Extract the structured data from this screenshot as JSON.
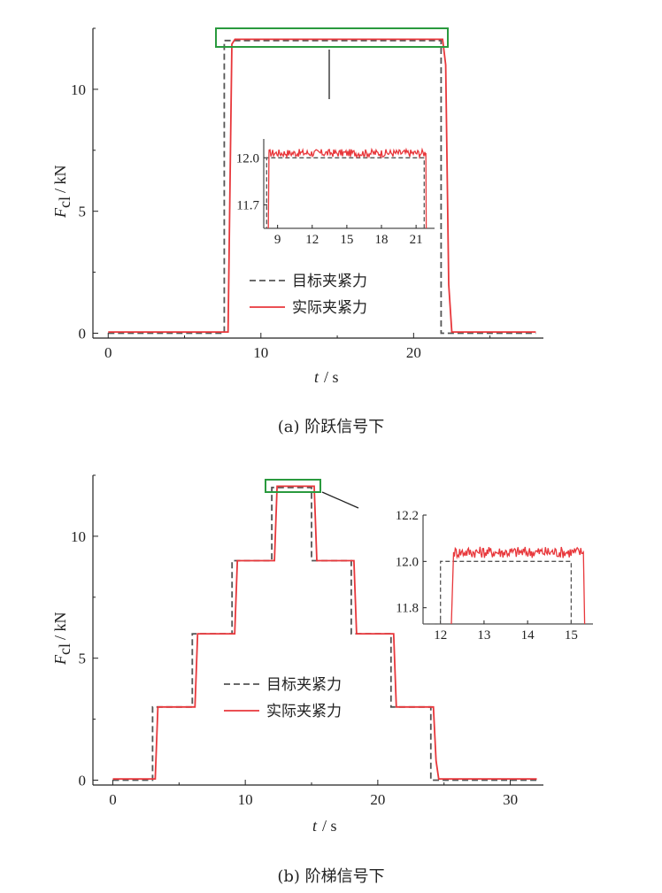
{
  "chart_data": [
    {
      "panel": "a",
      "type": "line",
      "caption": "(a)  阶跃信号下",
      "xlabel_var": "t",
      "xlabel_unit": "/ s",
      "ylabel_var": "F",
      "ylabel_sub": "cl",
      "ylabel_unit": "/ kN",
      "xlim": [
        -1,
        28.5
      ],
      "ylim": [
        -0.2,
        12.5
      ],
      "xticks": [
        0,
        10,
        20
      ],
      "yticks": [
        0,
        5,
        10
      ],
      "legend": {
        "placement": "lower-center",
        "entries": [
          "目标夹紧力",
          "实际夹紧力"
        ]
      },
      "series": [
        {
          "name": "目标夹紧力",
          "color": "#555555",
          "style": "dashed",
          "points": [
            [
              0,
              0
            ],
            [
              7.6,
              0
            ],
            [
              7.6,
              12
            ],
            [
              21.8,
              12
            ],
            [
              21.8,
              0
            ],
            [
              28,
              0
            ]
          ]
        },
        {
          "name": "实际夹紧力",
          "color": "#e8373b",
          "style": "solid",
          "points": [
            [
              0,
              0.05
            ],
            [
              7.85,
              0.05
            ],
            [
              8.1,
              11.85
            ],
            [
              8.3,
              12.05
            ],
            [
              21.9,
              12.05
            ],
            [
              22.1,
              11.0
            ],
            [
              22.3,
              2.0
            ],
            [
              22.5,
              0.05
            ],
            [
              28,
              0.05
            ]
          ]
        }
      ],
      "inset": {
        "xlim": [
          7.8,
          22.6
        ],
        "ylim": [
          11.55,
          12.12
        ],
        "xticks": [
          9,
          12,
          15,
          18,
          21
        ],
        "yticks": [
          11.7,
          12.0
        ],
        "target": [
          [
            7.8,
            11.55
          ],
          [
            8.05,
            11.55
          ],
          [
            8.05,
            12.0
          ],
          [
            21.7,
            12.0
          ],
          [
            21.7,
            11.55
          ]
        ],
        "actual_rise_x": 8.25,
        "actual_fall_x": 21.85,
        "actual_level": 12.03,
        "noise": 0.025
      }
    },
    {
      "panel": "b",
      "type": "line",
      "caption": "(b)  阶梯信号下",
      "xlabel_var": "t",
      "xlabel_unit": "/ s",
      "ylabel_var": "F",
      "ylabel_sub": "cl",
      "ylabel_unit": "/ kN",
      "xlim": [
        -1.5,
        32.5
      ],
      "ylim": [
        -0.2,
        12.5
      ],
      "xticks": [
        0,
        10,
        20,
        30
      ],
      "yticks": [
        0,
        5,
        10
      ],
      "legend": {
        "placement": "center",
        "entries": [
          "目标夹紧力",
          "实际夹紧力"
        ]
      },
      "series": [
        {
          "name": "目标夹紧力",
          "color": "#555555",
          "style": "dashed",
          "points": [
            [
              0,
              0
            ],
            [
              3,
              0
            ],
            [
              3,
              3
            ],
            [
              6,
              3
            ],
            [
              6,
              6
            ],
            [
              9,
              6
            ],
            [
              9,
              9
            ],
            [
              12,
              9
            ],
            [
              12,
              12
            ],
            [
              15,
              12
            ],
            [
              15,
              9
            ],
            [
              18,
              9
            ],
            [
              18,
              6
            ],
            [
              21,
              6
            ],
            [
              21,
              3
            ],
            [
              24,
              3
            ],
            [
              24,
              0
            ],
            [
              32,
              0
            ]
          ]
        },
        {
          "name": "实际夹紧力",
          "color": "#e8373b",
          "style": "solid",
          "points": [
            [
              0,
              0.05
            ],
            [
              3.2,
              0.05
            ],
            [
              3.4,
              3.0
            ],
            [
              6.2,
              3.0
            ],
            [
              6.4,
              6.0
            ],
            [
              9.2,
              6.0
            ],
            [
              9.4,
              9.0
            ],
            [
              12.2,
              9.0
            ],
            [
              12.4,
              12.05
            ],
            [
              15.2,
              12.05
            ],
            [
              15.4,
              9.0
            ],
            [
              18.2,
              9.0
            ],
            [
              18.4,
              6.0
            ],
            [
              21.2,
              6.0
            ],
            [
              21.4,
              3.0
            ],
            [
              24.2,
              3.0
            ],
            [
              24.4,
              0.8
            ],
            [
              24.6,
              0.05
            ],
            [
              32,
              0.05
            ]
          ]
        }
      ],
      "inset": {
        "xlim": [
          11.6,
          15.5
        ],
        "ylim": [
          11.73,
          12.2
        ],
        "xticks": [
          12,
          13,
          14,
          15
        ],
        "yticks": [
          11.8,
          12.0,
          12.2
        ],
        "target": [
          [
            11.6,
            11.73
          ],
          [
            12.0,
            11.73
          ],
          [
            12.0,
            12.0
          ],
          [
            15.0,
            12.0
          ],
          [
            15.0,
            11.73
          ]
        ],
        "actual_rise_x": 12.3,
        "actual_fall_x": 15.28,
        "actual_level": 12.04,
        "noise": 0.025
      }
    }
  ]
}
